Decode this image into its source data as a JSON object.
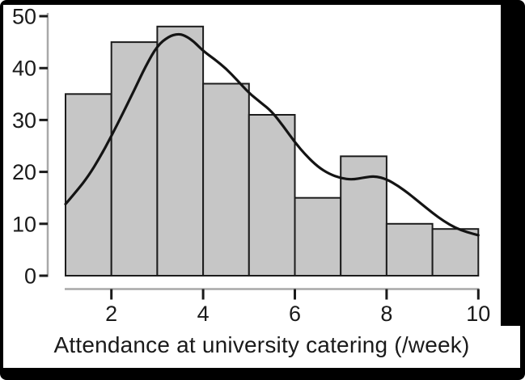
{
  "chart_data": {
    "type": "bar",
    "subtype": "histogram-with-density-curve",
    "title": "",
    "xlabel": "Attendance at university catering (/week)",
    "ylabel": "",
    "xlim": [
      1,
      10
    ],
    "ylim": [
      0,
      50
    ],
    "grid": "off",
    "legend": "none",
    "bin_edges": [
      1,
      2,
      3,
      4,
      5,
      6,
      7,
      8,
      9,
      10
    ],
    "bin_counts": [
      35,
      45,
      48,
      37,
      31,
      15,
      23,
      10,
      9
    ],
    "x_ticks": [
      2,
      4,
      6,
      8,
      10
    ],
    "x_tick_labels": [
      "2",
      "4",
      "6",
      "8",
      "10"
    ],
    "y_ticks": [
      0,
      10,
      20,
      30,
      40,
      50
    ],
    "y_tick_labels": [
      "0",
      "10",
      "20",
      "30",
      "40",
      "50"
    ],
    "density_curve": {
      "x": [
        1,
        1.25,
        1.5,
        1.75,
        2,
        2.25,
        2.5,
        2.75,
        3,
        3.25,
        3.45,
        3.6,
        3.8,
        4,
        4.25,
        4.5,
        4.75,
        5,
        5.25,
        5.5,
        5.75,
        6,
        6.25,
        6.5,
        6.75,
        7,
        7.25,
        7.5,
        7.75,
        8,
        8.25,
        8.5,
        8.75,
        9,
        9.25,
        9.5,
        9.75,
        10
      ],
      "y": [
        13.8,
        16.4,
        19.2,
        22.8,
        26.9,
        31.3,
        35.8,
        40.4,
        44.3,
        46.1,
        46.6,
        46.3,
        45.1,
        43.3,
        41.7,
        39.9,
        37.6,
        35.2,
        33.4,
        31.6,
        28.8,
        25.7,
        23.1,
        21.0,
        19.6,
        18.8,
        18.5,
        18.9,
        19.2,
        18.6,
        17.3,
        15.7,
        13.9,
        12.1,
        10.5,
        9.2,
        8.4,
        7.8
      ]
    },
    "colors": {
      "bar_fill": "#c6c6c6",
      "bar_stroke": "#1c1c1c",
      "curve": "#141414",
      "axis_line": "#a8a8a8",
      "tick": "#1a1a1a",
      "text": "#1a1a1a",
      "panel_background": "#ffffff",
      "frame_background": "#000000"
    }
  }
}
